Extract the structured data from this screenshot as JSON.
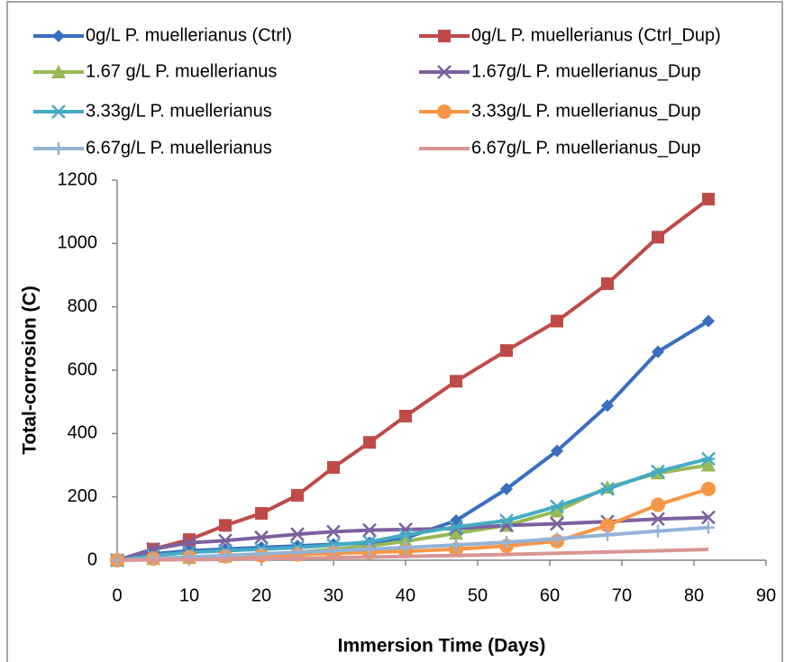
{
  "chart_data": {
    "type": "line",
    "xlabel": "Immersion Time (Days)",
    "ylabel": "Total-corrosion (C)",
    "x": [
      0,
      5,
      10,
      15,
      20,
      25,
      30,
      35,
      40,
      47,
      54,
      61,
      68,
      75,
      82
    ],
    "xlim": [
      0,
      90
    ],
    "xticks": [
      0,
      10,
      20,
      30,
      40,
      50,
      60,
      70,
      80,
      90
    ],
    "ylim": [
      0,
      1200
    ],
    "yticks": [
      0,
      200,
      400,
      600,
      800,
      1000,
      1200
    ],
    "grid": false,
    "legend": "top",
    "series": [
      {
        "name": "0g/L P. muellerianus (Ctrl)",
        "color": "#3a6ebf",
        "marker": "diamond",
        "values": [
          0,
          20,
          30,
          35,
          40,
          45,
          50,
          55,
          70,
          125,
          225,
          345,
          488,
          658,
          755
        ]
      },
      {
        "name": "0g/L P. muellerianus (Ctrl_Dup)",
        "color": "#be4b48",
        "marker": "square",
        "values": [
          0,
          35,
          65,
          110,
          148,
          205,
          293,
          372,
          455,
          565,
          662,
          755,
          873,
          1020,
          1140
        ]
      },
      {
        "name": "1.67 g/L P. muellerianus",
        "color": "#98b954",
        "marker": "triangle",
        "values": [
          0,
          5,
          8,
          12,
          18,
          25,
          35,
          45,
          60,
          85,
          110,
          155,
          230,
          275,
          300
        ]
      },
      {
        "name": "1.67g/L P. muellerianus_Dup",
        "color": "#7d60a0",
        "marker": "x",
        "values": [
          0,
          35,
          55,
          62,
          72,
          82,
          90,
          95,
          97,
          100,
          110,
          115,
          122,
          130,
          135
        ]
      },
      {
        "name": "3.33g/L P. muellerianus",
        "color": "#46aac5",
        "marker": "asterisk",
        "values": [
          0,
          15,
          25,
          30,
          35,
          40,
          48,
          58,
          80,
          105,
          125,
          170,
          225,
          280,
          320
        ]
      },
      {
        "name": "3.33g/L P. muellerianus_Dup",
        "color": "#f79646",
        "marker": "circle",
        "values": [
          0,
          5,
          10,
          12,
          15,
          18,
          22,
          25,
          28,
          35,
          45,
          60,
          110,
          175,
          225
        ]
      },
      {
        "name": "6.67g/L P. muellerianus",
        "color": "#95b3d7",
        "marker": "plus",
        "values": [
          0,
          5,
          10,
          15,
          20,
          25,
          30,
          35,
          40,
          48,
          57,
          68,
          80,
          92,
          103
        ]
      },
      {
        "name": "6.67g/L P. muellerianus_Dup",
        "color": "#d99694",
        "marker": "none",
        "values": [
          0,
          1,
          2,
          3,
          5,
          6,
          8,
          10,
          12,
          15,
          18,
          22,
          26,
          30,
          34
        ]
      }
    ]
  }
}
